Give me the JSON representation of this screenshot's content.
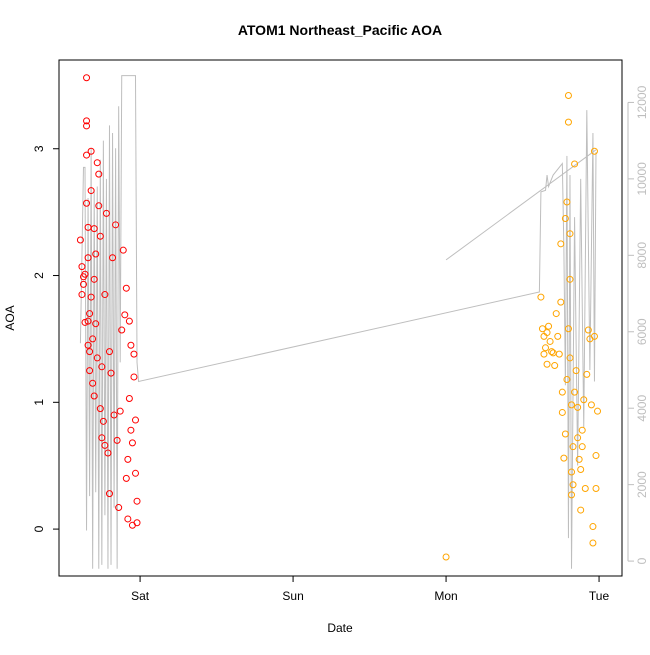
{
  "chart_data": {
    "type": "scatter",
    "title": "ATOM1 Northeast_Pacific AOA",
    "x_label": "Date",
    "y_label": "AOA",
    "xlim": [
      -0.53,
      3.15
    ],
    "xticks": [
      {
        "value": 0,
        "label": "Sat"
      },
      {
        "value": 1,
        "label": "Sun"
      },
      {
        "value": 2,
        "label": "Mon"
      },
      {
        "value": 3,
        "label": "Tue"
      }
    ],
    "ylim": [
      -0.37,
      3.7
    ],
    "yticks": [
      0,
      1,
      2,
      3
    ],
    "y2lim": [
      -390,
      13110
    ],
    "y2ticks": [
      0,
      2000,
      4000,
      6000,
      8000,
      10000,
      12000
    ],
    "y2_color": "#bebebe",
    "series": [
      {
        "color": "#ff0000",
        "x": [
          -0.39,
          -0.38,
          -0.38,
          -0.37,
          -0.37,
          -0.36,
          -0.36,
          -0.35,
          -0.35,
          -0.35,
          -0.35,
          -0.35,
          -0.34,
          -0.34,
          -0.34,
          -0.34,
          -0.33,
          -0.33,
          -0.33,
          -0.32,
          -0.32,
          -0.32,
          -0.31,
          -0.31,
          -0.3,
          -0.3,
          -0.3,
          -0.29,
          -0.29,
          -0.28,
          -0.28,
          -0.27,
          -0.27,
          -0.26,
          -0.26,
          -0.25,
          -0.25,
          -0.24,
          -0.23,
          -0.23,
          -0.22,
          -0.21,
          -0.2,
          -0.2,
          -0.19,
          -0.18,
          -0.17,
          -0.16,
          -0.15,
          -0.14,
          -0.13,
          -0.12,
          -0.11,
          -0.1,
          -0.09,
          -0.09,
          -0.08,
          -0.08,
          -0.07,
          -0.07,
          -0.06,
          -0.06,
          -0.05,
          -0.05,
          -0.04,
          -0.04,
          -0.03,
          -0.03,
          -0.02,
          -0.02
        ],
        "values": [
          2.28,
          1.85,
          2.07,
          1.93,
          1.99,
          1.63,
          2.01,
          3.56,
          3.22,
          3.18,
          2.95,
          2.57,
          2.38,
          2.14,
          1.64,
          1.45,
          1.4,
          1.25,
          1.7,
          2.98,
          2.67,
          1.83,
          1.5,
          1.15,
          1.05,
          2.37,
          1.97,
          2.17,
          1.62,
          1.35,
          2.89,
          2.8,
          2.55,
          2.31,
          0.95,
          0.72,
          1.28,
          0.85,
          0.66,
          1.85,
          2.49,
          0.6,
          1.4,
          0.28,
          1.23,
          2.14,
          0.9,
          2.4,
          0.7,
          0.17,
          0.93,
          1.57,
          2.2,
          1.69,
          1.9,
          0.4,
          0.55,
          0.08,
          1.03,
          1.64,
          1.45,
          0.78,
          0.68,
          0.03,
          1.2,
          1.38,
          0.86,
          0.44,
          0.22,
          0.05
        ]
      },
      {
        "color": "#ffa500",
        "x": [
          2.0,
          2.62,
          2.63,
          2.64,
          2.64,
          2.65,
          2.66,
          2.66,
          2.67,
          2.68,
          2.69,
          2.7,
          2.71,
          2.72,
          2.73,
          2.74,
          2.75,
          2.75,
          2.76,
          2.76,
          2.77,
          2.78,
          2.78,
          2.79,
          2.79,
          2.8,
          2.8,
          2.8,
          2.81,
          2.81,
          2.81,
          2.82,
          2.82,
          2.82,
          2.83,
          2.83,
          2.84,
          2.84,
          2.85,
          2.86,
          2.86,
          2.87,
          2.88,
          2.88,
          2.89,
          2.89,
          2.9,
          2.91,
          2.92,
          2.93,
          2.94,
          2.95,
          2.96,
          2.96,
          2.97,
          2.97,
          2.98,
          2.98,
          2.99
        ],
        "values": [
          -0.22,
          1.83,
          1.58,
          1.52,
          1.38,
          1.43,
          1.3,
          1.55,
          1.6,
          1.48,
          1.4,
          1.39,
          1.29,
          1.7,
          1.52,
          1.38,
          1.79,
          2.25,
          1.08,
          0.92,
          0.56,
          0.75,
          2.45,
          2.58,
          1.18,
          1.58,
          3.42,
          3.21,
          2.33,
          1.97,
          1.35,
          0.98,
          0.45,
          0.27,
          0.35,
          0.65,
          1.08,
          2.88,
          1.25,
          0.96,
          0.72,
          0.55,
          0.47,
          0.15,
          0.65,
          0.78,
          1.02,
          0.32,
          1.22,
          1.57,
          1.5,
          0.98,
          0.02,
          -0.11,
          2.98,
          1.52,
          0.32,
          0.58,
          0.93
        ]
      },
      {
        "color": "#bebebe",
        "type": "line",
        "axis": "y2",
        "x": [
          -0.39,
          -0.37,
          -0.36,
          -0.35,
          -0.34,
          -0.33,
          -0.32,
          -0.31,
          -0.3,
          -0.29,
          -0.28,
          -0.27,
          -0.26,
          -0.25,
          -0.24,
          -0.23,
          -0.22,
          -0.21,
          -0.2,
          -0.19,
          -0.18,
          -0.17,
          -0.16,
          -0.15,
          -0.14,
          -0.13,
          -0.12,
          -0.11,
          -0.08,
          -0.03,
          -0.02,
          -0.01,
          2.61,
          2.62,
          2.65,
          2.66,
          2.67,
          2.7,
          2.76,
          2.77,
          2.78,
          2.79,
          2.8,
          2.81,
          2.82,
          2.84,
          2.86,
          2.88,
          2.9,
          2.92,
          2.94,
          2.96,
          2.97,
          2.98,
          2.98,
          2.0,
          2.98
        ],
        "values": [
          5700,
          10300,
          10300,
          800,
          9500,
          1700,
          10800,
          -200,
          9700,
          1800,
          9800,
          -200,
          10500,
          -100,
          11000,
          1200,
          10000,
          -200,
          11400,
          -100,
          11200,
          1400,
          10800,
          -200,
          11900,
          5200,
          12700,
          12700,
          12700,
          12700,
          5200,
          4700,
          7040,
          9660,
          9700,
          10100,
          9800,
          10100,
          10400,
          8200,
          4600,
          10600,
          600,
          10100,
          -200,
          9000,
          2500,
          10000,
          3500,
          11800,
          5000,
          11200,
          4700,
          10700,
          null,
          7880,
          10760
        ]
      }
    ]
  }
}
